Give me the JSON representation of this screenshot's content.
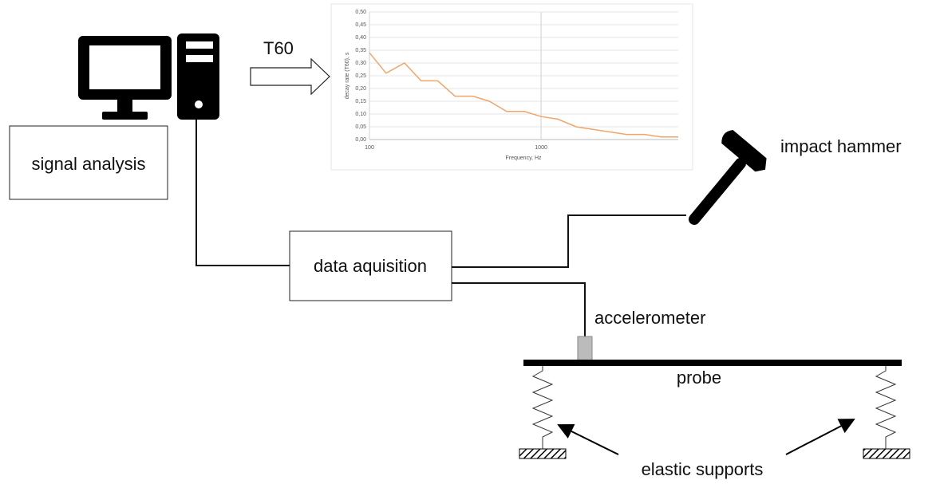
{
  "labels": {
    "t60": "T60",
    "signal_analysis": "signal analysis",
    "data_acquisition": "data aquisition",
    "impact_hammer": "impact hammer",
    "accelerometer": "accelerometer",
    "probe": "probe",
    "elastic_supports": "elastic supports"
  },
  "chart_data": {
    "type": "line",
    "x_label": "Frequency, Hz",
    "y_label": "decay rate (T60), s",
    "x": [
      100,
      125,
      160,
      200,
      250,
      315,
      400,
      500,
      630,
      800,
      1000,
      1250,
      1600,
      2000,
      2500,
      3150,
      4000,
      5000,
      6300
    ],
    "series": [
      {
        "name": "T60",
        "color": "#f0a56a",
        "values": [
          0.34,
          0.26,
          0.3,
          0.23,
          0.23,
          0.17,
          0.17,
          0.15,
          0.11,
          0.11,
          0.09,
          0.08,
          0.05,
          0.04,
          0.03,
          0.02,
          0.02,
          0.01,
          0.01
        ]
      }
    ],
    "xscale": "log",
    "xlim": [
      100,
      6300
    ],
    "xticks": [
      100,
      1000
    ],
    "ylim": [
      0,
      0.5
    ],
    "yticks": [
      {
        "value": 0,
        "label": "0,00"
      },
      {
        "value": 0.05,
        "label": "0,05"
      },
      {
        "value": 0.1,
        "label": "0,10"
      },
      {
        "value": 0.15,
        "label": "0,15"
      },
      {
        "value": 0.2,
        "label": "0,20"
      },
      {
        "value": 0.25,
        "label": "0,25"
      },
      {
        "value": 0.3,
        "label": "0,30"
      },
      {
        "value": 0.35,
        "label": "0,35"
      },
      {
        "value": 0.4,
        "label": "0,40"
      },
      {
        "value": 0.45,
        "label": "0,45"
      },
      {
        "value": 0.5,
        "label": "0,50"
      }
    ],
    "grid": true
  }
}
